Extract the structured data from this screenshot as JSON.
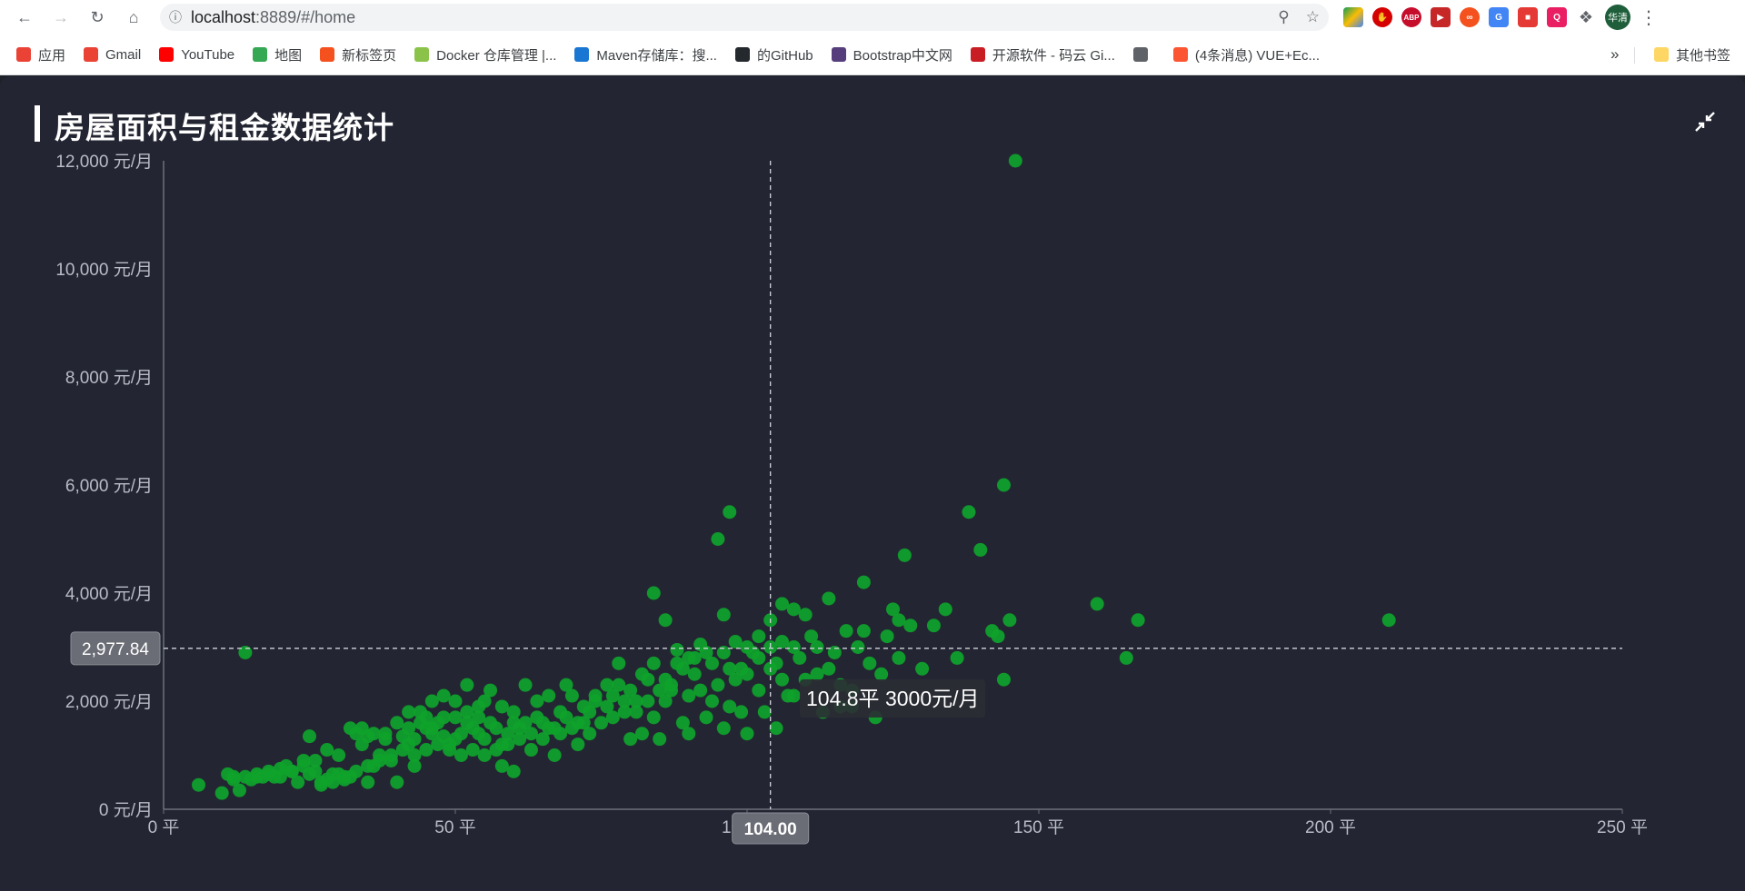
{
  "browser": {
    "url_host": "localhost",
    "url_path": ":8889/#/home",
    "avatar_label": "华清",
    "bookmarks": [
      {
        "label": "应用",
        "icon": "apps-grid-icon",
        "color": "#ea4335"
      },
      {
        "label": "Gmail",
        "icon": "gmail-icon",
        "color": "#ea4335"
      },
      {
        "label": "YouTube",
        "icon": "youtube-icon",
        "color": "#ff0000"
      },
      {
        "label": "地图",
        "icon": "maps-icon",
        "color": "#34a853"
      },
      {
        "label": "新标签页",
        "icon": "infinity-icon",
        "color": "#f4511e"
      },
      {
        "label": "Docker 仓库管理 |...",
        "icon": "docker-icon",
        "color": "#8bc34a"
      },
      {
        "label": "Maven存储库：搜...",
        "icon": "maven-icon",
        "color": "#1976d2"
      },
      {
        "label": "的GitHub",
        "icon": "github-icon",
        "color": "#24292e"
      },
      {
        "label": "Bootstrap中文网",
        "icon": "bootstrap-icon",
        "color": "#563d7c"
      },
      {
        "label": "开源软件 - 码云 Gi...",
        "icon": "gitee-icon",
        "color": "#c71d23"
      },
      {
        "label": "",
        "icon": "globe-icon",
        "color": "#5f6368"
      },
      {
        "label": "(4条消息) VUE+Ec...",
        "icon": "csdn-icon",
        "color": "#fc5531"
      }
    ],
    "more_bookmarks": "»",
    "other_bookmarks": "其他书签"
  },
  "panel": {
    "title": "房屋面积与租金数据统计"
  },
  "chart_data": {
    "type": "scatter",
    "title": "房屋面积与租金数据统计",
    "xlabel": "",
    "ylabel": "",
    "x_unit": "平",
    "y_unit": "元/月",
    "xlim": [
      0,
      250
    ],
    "ylim": [
      0,
      12000
    ],
    "x_ticks": [
      "0 平",
      "50 平",
      "100 平",
      "150 平",
      "200 平",
      "250 平"
    ],
    "y_ticks": [
      "0 元/月",
      "2,000 元/月",
      "4,000 元/月",
      "6,000 元/月",
      "8,000 元/月",
      "10,000 元/月",
      "12,000 元/月"
    ],
    "point_color": "#0fa32b",
    "grid": false,
    "crosshair": {
      "x": 104.0,
      "y": 2977.84,
      "x_label": "104.00",
      "y_label": "2,977.84"
    },
    "tooltip": "104.8平 3000元/月",
    "series": [
      {
        "points": [
          [
            6,
            450
          ],
          [
            10,
            300
          ],
          [
            11,
            650
          ],
          [
            12,
            600
          ],
          [
            13,
            350
          ],
          [
            14,
            2900
          ],
          [
            15,
            550
          ],
          [
            16,
            600
          ],
          [
            17,
            600
          ],
          [
            18,
            650
          ],
          [
            19,
            600
          ],
          [
            20,
            600
          ],
          [
            21,
            800
          ],
          [
            22,
            700
          ],
          [
            23,
            500
          ],
          [
            24,
            800
          ],
          [
            25,
            650
          ],
          [
            25,
            1350
          ],
          [
            26,
            700
          ],
          [
            27,
            500
          ],
          [
            28,
            550
          ],
          [
            29,
            650
          ],
          [
            30,
            650
          ],
          [
            31,
            550
          ],
          [
            32,
            1500
          ],
          [
            32,
            600
          ],
          [
            33,
            1400
          ],
          [
            34,
            1500
          ],
          [
            35,
            1350
          ],
          [
            35,
            500
          ],
          [
            36,
            800
          ],
          [
            37,
            900
          ],
          [
            38,
            1400
          ],
          [
            39,
            1000
          ],
          [
            40,
            1600
          ],
          [
            40,
            500
          ],
          [
            41,
            1350
          ],
          [
            42,
            1500
          ],
          [
            42,
            1800
          ],
          [
            43,
            1300
          ],
          [
            43,
            800
          ],
          [
            44,
            1600
          ],
          [
            45,
            1500
          ],
          [
            45,
            1700
          ],
          [
            46,
            1500
          ],
          [
            47,
            1600
          ],
          [
            48,
            1350
          ],
          [
            48,
            2100
          ],
          [
            49,
            1200
          ],
          [
            50,
            1700
          ],
          [
            50,
            2000
          ],
          [
            51,
            1400
          ],
          [
            52,
            1600
          ],
          [
            52,
            2300
          ],
          [
            53,
            1500
          ],
          [
            54,
            1700
          ],
          [
            55,
            1300
          ],
          [
            55,
            2000
          ],
          [
            56,
            1600
          ],
          [
            57,
            1500
          ],
          [
            58,
            1200
          ],
          [
            58,
            800
          ],
          [
            59,
            1400
          ],
          [
            60,
            1800
          ],
          [
            60,
            700
          ],
          [
            61,
            1500
          ],
          [
            62,
            1600
          ],
          [
            63,
            1100
          ],
          [
            64,
            1700
          ],
          [
            65,
            1300
          ],
          [
            66,
            1500
          ],
          [
            67,
            1000
          ],
          [
            68,
            1400
          ],
          [
            69,
            2300
          ],
          [
            70,
            1500
          ],
          [
            71,
            1200
          ],
          [
            72,
            1600
          ],
          [
            73,
            1400
          ],
          [
            75,
            1600
          ],
          [
            76,
            1900
          ],
          [
            77,
            2100
          ],
          [
            78,
            2700
          ],
          [
            79,
            1800
          ],
          [
            80,
            2200
          ],
          [
            80,
            1300
          ],
          [
            81,
            2000
          ],
          [
            82,
            1400
          ],
          [
            83,
            2400
          ],
          [
            84,
            1700
          ],
          [
            84,
            2700
          ],
          [
            85,
            1300
          ],
          [
            86,
            2000
          ],
          [
            87,
            2200
          ],
          [
            88,
            2700
          ],
          [
            89,
            1600
          ],
          [
            90,
            2800
          ],
          [
            90,
            1400
          ],
          [
            91,
            2500
          ],
          [
            92,
            2200
          ],
          [
            93,
            1700
          ],
          [
            93,
            2900
          ],
          [
            94,
            2000
          ],
          [
            95,
            2300
          ],
          [
            96,
            1500
          ],
          [
            97,
            2600
          ],
          [
            97,
            1900
          ],
          [
            98,
            2400
          ],
          [
            99,
            1800
          ],
          [
            100,
            2500
          ],
          [
            100,
            1400
          ],
          [
            101,
            2900
          ],
          [
            102,
            2200
          ],
          [
            103,
            1800
          ],
          [
            104,
            2600
          ],
          [
            104,
            3000
          ],
          [
            105,
            1500
          ],
          [
            105,
            2700
          ],
          [
            106,
            3100
          ],
          [
            107,
            2100
          ],
          [
            108,
            3000
          ],
          [
            108,
            3700
          ],
          [
            109,
            2800
          ],
          [
            110,
            2400
          ],
          [
            111,
            3200
          ],
          [
            112,
            3000
          ],
          [
            113,
            1800
          ],
          [
            114,
            2600
          ],
          [
            115,
            2900
          ],
          [
            116,
            1900
          ],
          [
            117,
            3300
          ],
          [
            118,
            2200
          ],
          [
            119,
            3000
          ],
          [
            120,
            3300
          ],
          [
            121,
            2700
          ],
          [
            122,
            1700
          ],
          [
            123,
            2500
          ],
          [
            124,
            3200
          ],
          [
            125,
            3700
          ],
          [
            126,
            2800
          ],
          [
            127,
            4700
          ],
          [
            128,
            3400
          ],
          [
            130,
            2600
          ],
          [
            132,
            3400
          ],
          [
            134,
            3700
          ],
          [
            136,
            2800
          ],
          [
            138,
            5500
          ],
          [
            140,
            4800
          ],
          [
            142,
            3300
          ],
          [
            143,
            3200
          ],
          [
            144,
            2400
          ],
          [
            144,
            6000
          ],
          [
            145,
            3500
          ],
          [
            146,
            12000
          ],
          [
            160,
            3800
          ],
          [
            165,
            2800
          ],
          [
            167,
            3500
          ],
          [
            210,
            3500
          ],
          [
            88,
            2950
          ],
          [
            92,
            3050
          ],
          [
            96,
            2900
          ],
          [
            98,
            3100
          ],
          [
            100,
            3000
          ],
          [
            102,
            3200
          ],
          [
            94,
            2700
          ],
          [
            86,
            2400
          ],
          [
            90,
            2100
          ],
          [
            82,
            2500
          ],
          [
            78,
            2300
          ],
          [
            74,
            2000
          ],
          [
            72,
            1900
          ],
          [
            70,
            2100
          ],
          [
            68,
            1800
          ],
          [
            66,
            2100
          ],
          [
            64,
            2000
          ],
          [
            62,
            2300
          ],
          [
            56,
            2200
          ],
          [
            54,
            1900
          ],
          [
            46,
            2000
          ],
          [
            44,
            1800
          ],
          [
            48,
            1700
          ],
          [
            52,
            1800
          ],
          [
            58,
            1900
          ],
          [
            60,
            1600
          ],
          [
            54,
            1400
          ],
          [
            50,
            1300
          ],
          [
            46,
            1400
          ],
          [
            42,
            1200
          ],
          [
            38,
            1300
          ],
          [
            36,
            1400
          ],
          [
            34,
            1200
          ],
          [
            30,
            1000
          ],
          [
            28,
            1100
          ],
          [
            26,
            900
          ],
          [
            24,
            900
          ],
          [
            22,
            700
          ],
          [
            20,
            750
          ],
          [
            18,
            700
          ],
          [
            16,
            650
          ],
          [
            14,
            600
          ],
          [
            12,
            550
          ],
          [
            95,
            5000
          ],
          [
            97,
            5500
          ],
          [
            86,
            3500
          ],
          [
            84,
            4000
          ],
          [
            96,
            3600
          ],
          [
            104,
            3500
          ],
          [
            106,
            3800
          ],
          [
            110,
            3600
          ],
          [
            114,
            3900
          ],
          [
            120,
            4200
          ],
          [
            126,
            3500
          ],
          [
            112,
            2500
          ],
          [
            116,
            2300
          ],
          [
            118,
            1900
          ],
          [
            108,
            2100
          ],
          [
            106,
            2400
          ],
          [
            102,
            2800
          ],
          [
            99,
            2600
          ],
          [
            91,
            2800
          ],
          [
            89,
            2600
          ],
          [
            87,
            2300
          ],
          [
            85,
            2200
          ],
          [
            83,
            2000
          ],
          [
            81,
            1800
          ],
          [
            79,
            2000
          ],
          [
            77,
            1700
          ],
          [
            76,
            2300
          ],
          [
            74,
            2100
          ],
          [
            73,
            1800
          ],
          [
            71,
            1600
          ],
          [
            69,
            1700
          ],
          [
            67,
            1500
          ],
          [
            65,
            1600
          ],
          [
            63,
            1400
          ],
          [
            61,
            1300
          ],
          [
            59,
            1200
          ],
          [
            57,
            1100
          ],
          [
            55,
            1000
          ],
          [
            53,
            1100
          ],
          [
            51,
            1000
          ],
          [
            49,
            1100
          ],
          [
            47,
            1200
          ],
          [
            45,
            1100
          ],
          [
            43,
            1000
          ],
          [
            41,
            1100
          ],
          [
            39,
            900
          ],
          [
            37,
            1000
          ],
          [
            35,
            800
          ],
          [
            33,
            700
          ],
          [
            31,
            600
          ],
          [
            29,
            500
          ],
          [
            27,
            450
          ]
        ]
      }
    ]
  }
}
